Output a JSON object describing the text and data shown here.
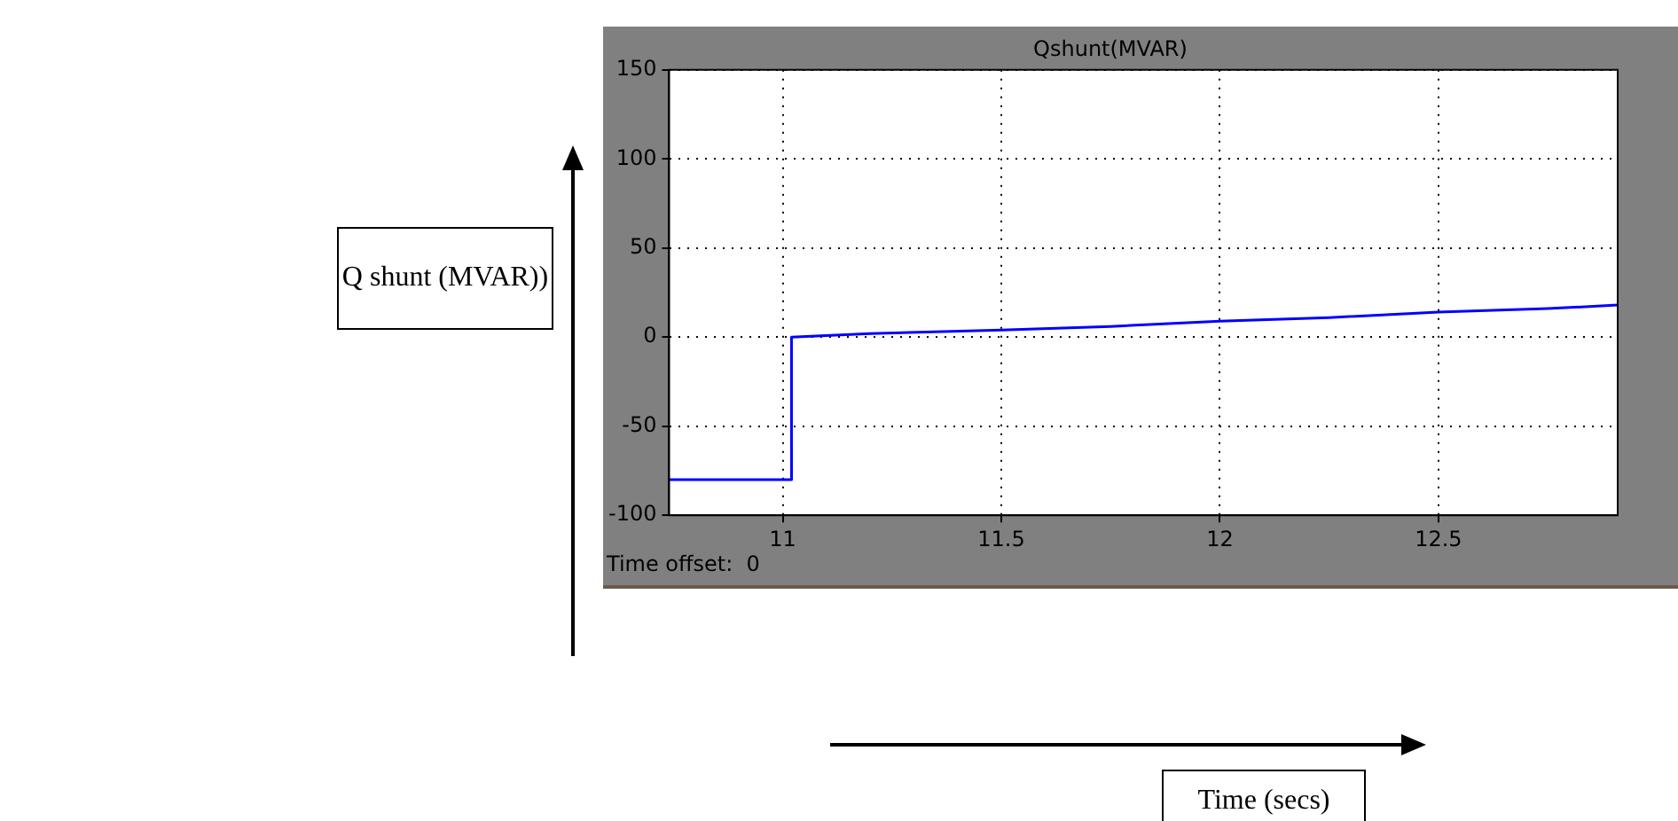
{
  "chart_data": {
    "type": "line",
    "title": "Qshunt(MVAR)",
    "x": [
      10.74,
      11.02,
      11.02,
      11.2,
      11.5,
      11.75,
      12,
      12.25,
      12.5,
      12.75,
      12.91
    ],
    "series": [
      {
        "color": "#0000ff",
        "values": [
          -80,
          -80,
          0,
          2,
          4,
          6,
          9,
          11,
          14,
          16,
          18
        ]
      }
    ],
    "xlim": [
      10.74,
      12.91
    ],
    "xticks": [
      11,
      11.5,
      12,
      12.5
    ],
    "ylim": [
      -100,
      150
    ],
    "yticks": [
      -100,
      -50,
      0,
      50,
      100,
      150
    ],
    "grid": true,
    "line_style": "solid",
    "marker": "none",
    "legend": false,
    "annotations": [
      "Time offset:  0",
      "Q shunt (MVAR))",
      "Time (secs)"
    ]
  }
}
